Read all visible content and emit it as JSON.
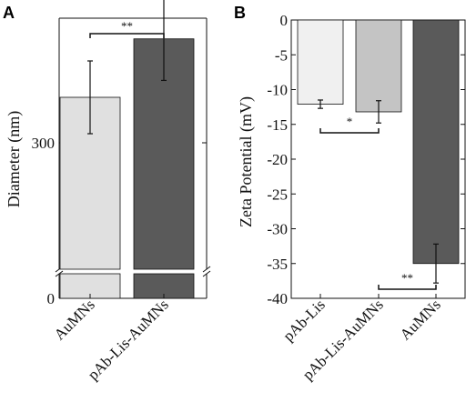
{
  "colors": {
    "light": "#e0e0e0",
    "lighter": "#f0f0f0",
    "medium": "#c4c4c4",
    "dark": "#5a5a5a",
    "stroke": "#111111"
  },
  "chart_data": [
    {
      "type": "bar",
      "panel_label": "A",
      "ylabel": "Diameter (nm)",
      "categories": [
        "AuMNs",
        "pAb-Lis-AuMNs"
      ],
      "values": [
        335,
        380
      ],
      "errors": [
        28,
        32
      ],
      "bar_colors": [
        "#e0e0e0",
        "#5a5a5a"
      ],
      "y_ticks": [
        {
          "value": 0,
          "label": "0"
        },
        {
          "value": 300,
          "label": "300"
        }
      ],
      "axis_break": true,
      "significance": [
        {
          "from": 0,
          "to": 1,
          "label": "**"
        }
      ]
    },
    {
      "type": "bar",
      "panel_label": "B",
      "ylabel": "Zeta Potential (mV)",
      "categories": [
        "pAb-Lis",
        "pAb-Lis-AuMNs",
        "AuMNs"
      ],
      "values": [
        -12.1,
        -13.2,
        -35.0
      ],
      "errors": [
        0.6,
        1.6,
        2.8
      ],
      "bar_colors": [
        "#f0f0f0",
        "#c4c4c4",
        "#5a5a5a"
      ],
      "ylim": [
        -40,
        0
      ],
      "y_ticks": [
        {
          "value": 0,
          "label": "0"
        },
        {
          "value": -5,
          "label": "-5"
        },
        {
          "value": -10,
          "label": "-10"
        },
        {
          "value": -15,
          "label": "-15"
        },
        {
          "value": -20,
          "label": "-20"
        },
        {
          "value": -25,
          "label": "-25"
        },
        {
          "value": -30,
          "label": "-30"
        },
        {
          "value": -35,
          "label": "-35"
        },
        {
          "value": -40,
          "label": "-40"
        }
      ],
      "significance": [
        {
          "from": 0,
          "to": 1,
          "label": "*"
        },
        {
          "from": 1,
          "to": 2,
          "label": "**"
        }
      ]
    }
  ]
}
